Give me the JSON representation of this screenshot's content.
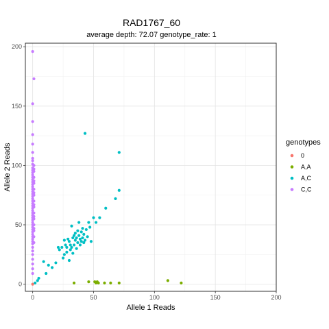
{
  "chart_data": {
    "type": "scatter",
    "title": "RAD1767_60",
    "subtitle": "average depth:  72.07  genotype_rate:  1",
    "xlabel": "Allele 1 Reads",
    "ylabel": "Allele 2 Reads",
    "xlim": [
      -6,
      200
    ],
    "ylim": [
      -6,
      203
    ],
    "xticks": [
      0,
      50,
      100,
      150,
      200
    ],
    "yticks": [
      0,
      50,
      100,
      150,
      200
    ],
    "grid": true,
    "legend": {
      "title": "genotypes",
      "position": "right"
    },
    "series": [
      {
        "name": "0",
        "color": "#F8766D",
        "points": [
          [
            0,
            0
          ]
        ]
      },
      {
        "name": "A,A",
        "color": "#7CAE00",
        "points": [
          [
            34,
            1
          ],
          [
            46,
            2
          ],
          [
            51,
            2
          ],
          [
            52,
            1
          ],
          [
            53,
            2
          ],
          [
            54,
            1
          ],
          [
            59,
            1
          ],
          [
            64,
            1
          ],
          [
            71,
            1
          ],
          [
            111,
            3
          ],
          [
            122,
            1
          ]
        ]
      },
      {
        "name": "A,C",
        "color": "#00BFC4",
        "points": [
          [
            2,
            1
          ],
          [
            4,
            3
          ],
          [
            5,
            5
          ],
          [
            9,
            19
          ],
          [
            11,
            9
          ],
          [
            13,
            16
          ],
          [
            16,
            14
          ],
          [
            19,
            18
          ],
          [
            21,
            31
          ],
          [
            22,
            29
          ],
          [
            24,
            31
          ],
          [
            25,
            22
          ],
          [
            26,
            37
          ],
          [
            26,
            25
          ],
          [
            27,
            33
          ],
          [
            28,
            31
          ],
          [
            28,
            27
          ],
          [
            29,
            38
          ],
          [
            30,
            36
          ],
          [
            30,
            20
          ],
          [
            31,
            33
          ],
          [
            31,
            29
          ],
          [
            32,
            31
          ],
          [
            32,
            49
          ],
          [
            33,
            26
          ],
          [
            33,
            39
          ],
          [
            34,
            33
          ],
          [
            34,
            41
          ],
          [
            35,
            37
          ],
          [
            35,
            43
          ],
          [
            36,
            39
          ],
          [
            36,
            30
          ],
          [
            37,
            45
          ],
          [
            37,
            35
          ],
          [
            38,
            41
          ],
          [
            38,
            52
          ],
          [
            39,
            38
          ],
          [
            39,
            33
          ],
          [
            40,
            44
          ],
          [
            40,
            36
          ],
          [
            41,
            47
          ],
          [
            41,
            39
          ],
          [
            42,
            35
          ],
          [
            42,
            42
          ],
          [
            43,
            37
          ],
          [
            43,
            127
          ],
          [
            44,
            46
          ],
          [
            45,
            40
          ],
          [
            46,
            52
          ],
          [
            47,
            48
          ],
          [
            48,
            36
          ],
          [
            50,
            56
          ],
          [
            52,
            52
          ],
          [
            55,
            56
          ],
          [
            60,
            64
          ],
          [
            68,
            72
          ],
          [
            71,
            111
          ],
          [
            71,
            79
          ]
        ]
      },
      {
        "name": "C,C",
        "color": "#C77CFF",
        "points": [
          [
            0,
            196
          ],
          [
            1,
            173
          ],
          [
            0,
            152
          ],
          [
            0,
            137
          ],
          [
            0,
            126
          ],
          [
            0,
            118
          ],
          [
            0,
            111
          ],
          [
            0,
            106
          ],
          [
            0,
            104
          ],
          [
            0,
            101
          ],
          [
            0,
            98
          ],
          [
            0,
            96
          ],
          [
            0,
            94
          ],
          [
            0,
            92
          ],
          [
            0,
            90
          ],
          [
            0,
            88
          ],
          [
            0,
            86
          ],
          [
            0,
            84
          ],
          [
            0,
            82
          ],
          [
            0,
            80
          ],
          [
            0,
            78
          ],
          [
            0,
            76
          ],
          [
            0,
            74
          ],
          [
            0,
            72
          ],
          [
            0,
            70
          ],
          [
            0,
            68
          ],
          [
            0,
            66
          ],
          [
            0,
            64
          ],
          [
            0,
            62
          ],
          [
            0,
            60
          ],
          [
            0,
            58
          ],
          [
            0,
            56
          ],
          [
            0,
            54
          ],
          [
            0,
            52
          ],
          [
            0,
            50
          ],
          [
            0,
            48
          ],
          [
            0,
            46
          ],
          [
            0,
            44
          ],
          [
            0,
            42
          ],
          [
            0,
            40
          ],
          [
            0,
            38
          ],
          [
            0,
            36
          ],
          [
            0,
            34
          ],
          [
            0,
            31
          ],
          [
            0,
            28
          ],
          [
            0,
            25
          ],
          [
            0,
            21
          ],
          [
            0,
            17
          ],
          [
            0,
            13
          ],
          [
            0,
            9
          ],
          [
            1,
            100
          ],
          [
            1,
            95
          ],
          [
            1,
            90
          ],
          [
            1,
            85
          ],
          [
            1,
            80
          ],
          [
            1,
            75
          ],
          [
            1,
            70
          ],
          [
            1,
            65
          ],
          [
            1,
            60
          ],
          [
            1,
            55
          ],
          [
            1,
            50
          ],
          [
            1,
            45
          ],
          [
            1,
            40
          ],
          [
            1,
            35
          ],
          [
            1,
            97
          ],
          [
            1,
            87
          ],
          [
            1,
            77
          ],
          [
            1,
            67
          ],
          [
            1,
            57
          ],
          [
            1,
            47
          ]
        ]
      }
    ]
  }
}
